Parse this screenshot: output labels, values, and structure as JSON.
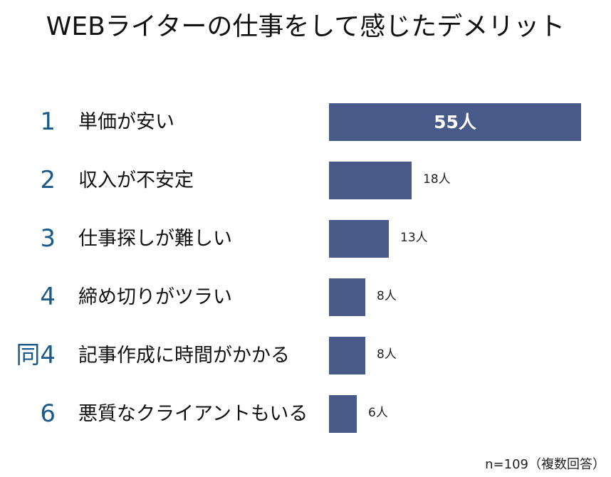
{
  "title": "WEBライターの仕事をして感じたデメリット",
  "note": "n=109（複数回答）",
  "colors": {
    "bar": "#485a8a",
    "rank": "#1a5a8a",
    "text": "#111111",
    "bar_label_inside": "#ffffff"
  },
  "rows": [
    {
      "rank": "1",
      "label": "単価が安い",
      "value": 55,
      "value_label": "55人"
    },
    {
      "rank": "2",
      "label": "収入が不安定",
      "value": 18,
      "value_label": "18人"
    },
    {
      "rank": "3",
      "label": "仕事探しが難しい",
      "value": 13,
      "value_label": "13人"
    },
    {
      "rank": "4",
      "label": "締め切りがツラい",
      "value": 8,
      "value_label": "8人"
    },
    {
      "rank": "同4",
      "label": "記事作成に時間がかかる",
      "value": 8,
      "value_label": "8人"
    },
    {
      "rank": "6",
      "label": "悪質なクライアントもいる",
      "value": 6,
      "value_label": "6人"
    }
  ],
  "chart_data": {
    "type": "bar",
    "orientation": "horizontal",
    "title": "WEBライターの仕事をして感じたデメリット",
    "categories": [
      "単価が安い",
      "収入が不安定",
      "仕事探しが難しい",
      "締め切りがツラい",
      "記事作成に時間がかかる",
      "悪質なクライアントもいる"
    ],
    "ranks": [
      "1",
      "2",
      "3",
      "4",
      "同4",
      "6"
    ],
    "values": [
      55,
      18,
      13,
      8,
      8,
      6
    ],
    "value_labels": [
      "55人",
      "18人",
      "13人",
      "8人",
      "8人",
      "6人"
    ],
    "unit": "人",
    "xlabel": "",
    "ylabel": "",
    "grid": false,
    "legend": null,
    "annotation": "n=109（複数回答）"
  }
}
